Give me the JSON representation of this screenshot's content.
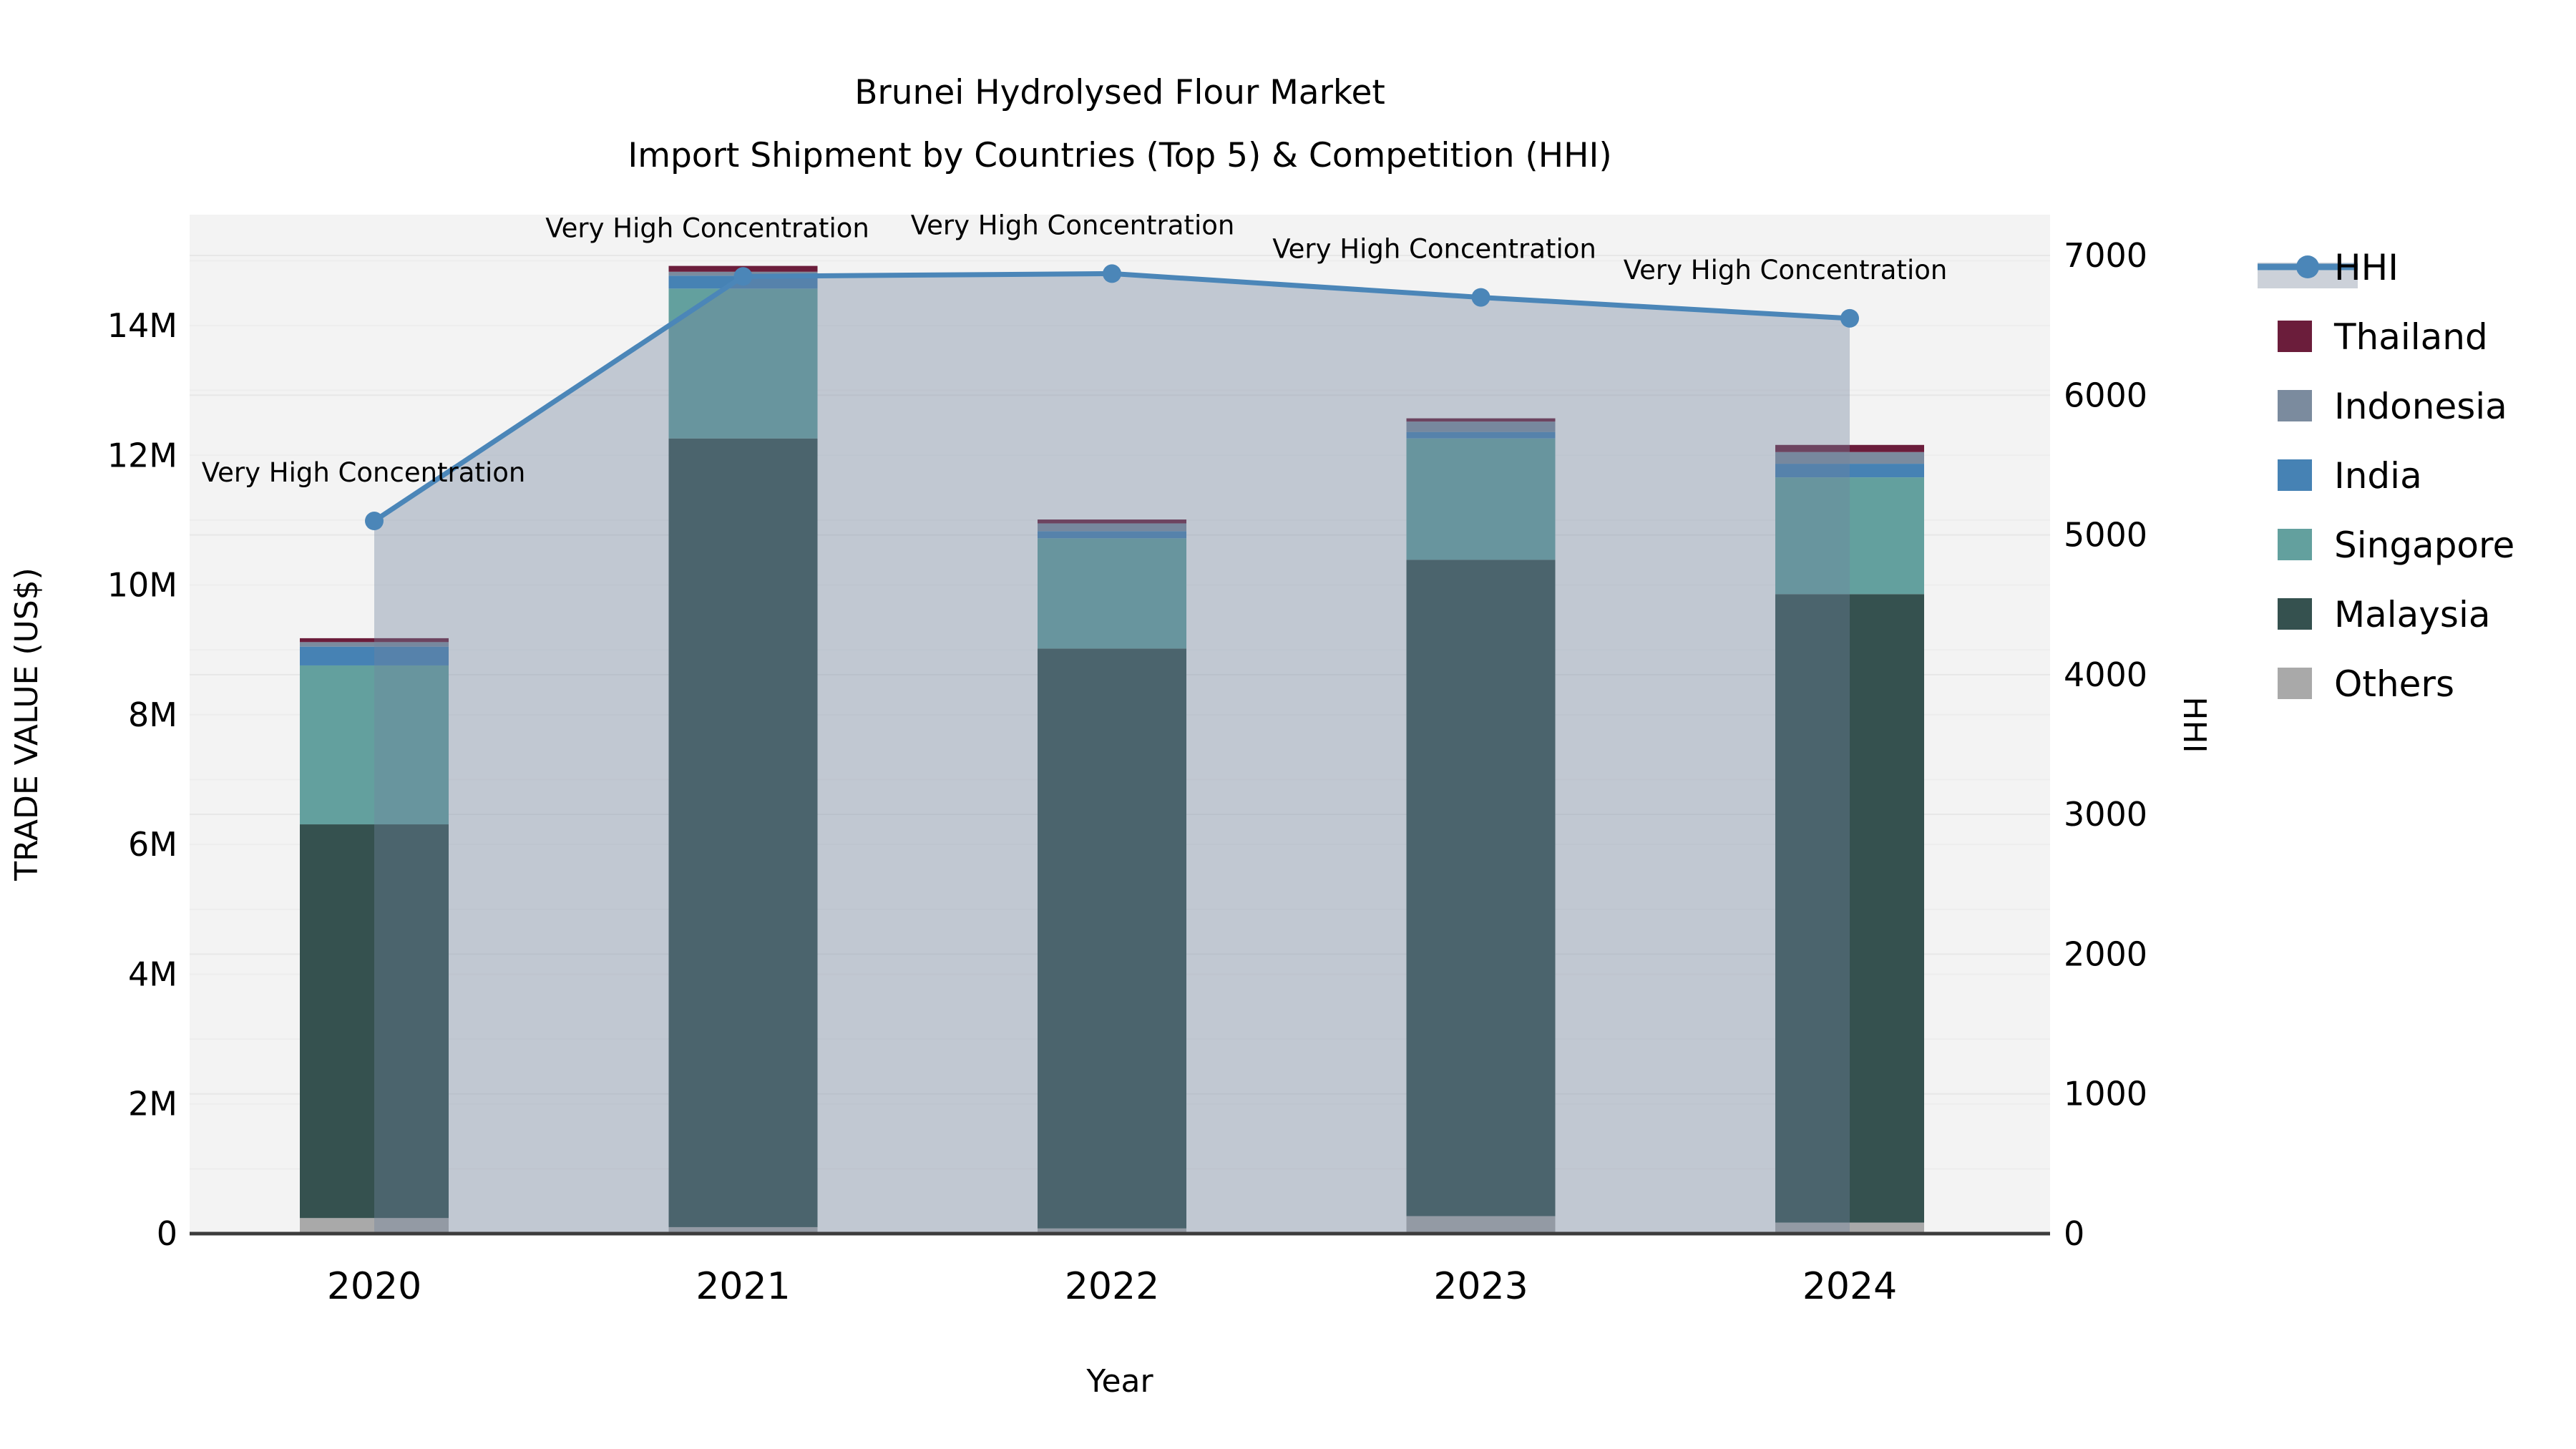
{
  "chart_data": {
    "type": "bar+line",
    "title_line_1": "Brunei Hydrolysed Flour Market",
    "title_line_2": "Import Shipment by Countries (Top 5) & Competition (HHI)",
    "xlabel": "Year",
    "ylabel_left": "TRADE VALUE (US$)",
    "ylabel_right": "HHI",
    "categories": [
      "2020",
      "2021",
      "2022",
      "2023",
      "2024"
    ],
    "left_axis": {
      "ticks": [
        "0",
        "2M",
        "4M",
        "6M",
        "8M",
        "10M",
        "12M",
        "14M"
      ],
      "tick_values_musd": [
        0,
        2,
        4,
        6,
        8,
        10,
        12,
        14
      ],
      "max_musd": 15.7
    },
    "right_axis": {
      "ticks": [
        "0",
        "1000",
        "2000",
        "3000",
        "4000",
        "5000",
        "6000",
        "7000"
      ],
      "tick_values": [
        0,
        1000,
        2000,
        3000,
        4000,
        5000,
        6000,
        7000
      ],
      "max": 7290
    },
    "series": [
      {
        "name": "Others",
        "color": "#a9a9a9",
        "values_musd": [
          0.24,
          0.1,
          0.08,
          0.27,
          0.17
        ]
      },
      {
        "name": "Malaysia",
        "color": "#35514f",
        "values_musd": [
          6.07,
          12.16,
          8.94,
          10.12,
          9.69
        ]
      },
      {
        "name": "Singapore",
        "color": "#63a09e",
        "values_musd": [
          2.45,
          2.31,
          1.7,
          1.87,
          1.8
        ]
      },
      {
        "name": "India",
        "color": "#4682b4",
        "values_musd": [
          0.29,
          0.2,
          0.11,
          0.1,
          0.21
        ]
      },
      {
        "name": "Indonesia",
        "color": "#7b8b9e",
        "values_musd": [
          0.07,
          0.06,
          0.12,
          0.16,
          0.18
        ]
      },
      {
        "name": "Thailand",
        "color": "#6b1d3b",
        "values_musd": [
          0.06,
          0.09,
          0.06,
          0.05,
          0.11
        ]
      }
    ],
    "bar_totals_musd": [
      9.18,
      14.92,
      11.01,
      12.57,
      12.16
    ],
    "hhi_line": {
      "name": "HHI",
      "color": "#4b86b8",
      "area_fill": "rgba(114,131,158,0.38)",
      "values": [
        5100,
        6850,
        6870,
        6700,
        6550
      ]
    },
    "annotation_label": "Very High Concentration",
    "legend": [
      {
        "label": "HHI",
        "swatch": "line"
      },
      {
        "label": "Thailand",
        "swatch": "#6b1d3b"
      },
      {
        "label": "Indonesia",
        "swatch": "#7b8b9e"
      },
      {
        "label": "India",
        "swatch": "#4682b4"
      },
      {
        "label": "Singapore",
        "swatch": "#63a09e"
      },
      {
        "label": "Malaysia",
        "swatch": "#35514f"
      },
      {
        "label": "Others",
        "swatch": "#a9a9a9"
      }
    ],
    "grid": true,
    "legend_position": "right-outside",
    "plot_bg": "#f3f3f3",
    "grid_color": "#e7e7e7",
    "axis_line_color": "#3c3c3c"
  }
}
